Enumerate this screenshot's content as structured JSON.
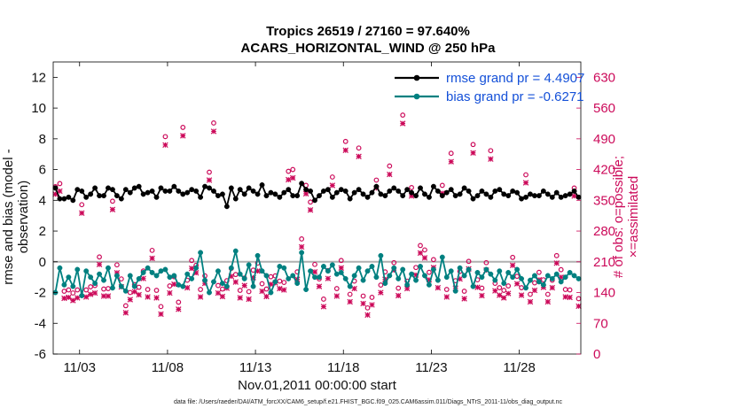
{
  "chart_data": {
    "type": "line",
    "title": "Tropics 26519 / 27160 = 97.640%",
    "subtitle": "ACARS_HORIZONTAL_WIND @ 250 hPa",
    "xlabel": "Nov.01,2011 00:00:00 start",
    "ylabel_left": "rmse and bias (model - observation)",
    "ylabel_right": "# of obs: o=possible; ×=assimilated",
    "footnote": "data file: /Users/raeder/DAI/ATM_forcXX/CAM6_setup/f.e21.FHIST_BGC.f09_025.CAM6assim.011/Diags_NTrS_2011-11/obs_diag_output.nc",
    "xlim": [
      1.5,
      31.5
    ],
    "ylim_left": [
      -6,
      13
    ],
    "ylim_right": [
      0,
      665
    ],
    "x_tick_values": [
      3,
      8,
      13,
      18,
      23,
      28
    ],
    "x_tick_labels": [
      "11/03",
      "11/08",
      "11/13",
      "11/18",
      "11/23",
      "11/28"
    ],
    "y_left_ticks": [
      "-6",
      "-4",
      "-2",
      "0",
      "2",
      "4",
      "6",
      "8",
      "10",
      "12"
    ],
    "y_right_ticks": [
      "0",
      "70",
      "140",
      "210",
      "280",
      "350",
      "420",
      "490",
      "560",
      "630"
    ],
    "legend": [
      {
        "label": "rmse grand pr = 4.4907",
        "color": "#000000"
      },
      {
        "label": "bias grand pr = -0.6271",
        "color": "#008080"
      }
    ],
    "series": [
      {
        "name": "rmse",
        "color": "#000000",
        "values": [
          4.8,
          4.1,
          4.1,
          4.2,
          4.0,
          4.7,
          4.6,
          4.2,
          4.4,
          4.8,
          4.3,
          4.3,
          4.8,
          4.7,
          4.3,
          4.1,
          4.7,
          4.5,
          4.8,
          4.9,
          4.4,
          4.5,
          4.6,
          4.2,
          4.8,
          4.6,
          4.6,
          4.9,
          4.6,
          4.4,
          4.5,
          4.7,
          4.6,
          4.2,
          4.9,
          4.8,
          4.6,
          4.3,
          4.4,
          3.6,
          4.8,
          4.1,
          4.7,
          4.4,
          4.8,
          4.6,
          4.4,
          5.0,
          4.3,
          4.5,
          4.4,
          4.2,
          4.5,
          4.7,
          4.3,
          4.3,
          5.1,
          4.7,
          4.6,
          4.0,
          4.3,
          4.6,
          4.7,
          4.2,
          4.5,
          4.7,
          4.6,
          4.1,
          4.5,
          4.7,
          4.4,
          4.2,
          4.5,
          4.9,
          4.4,
          4.3,
          4.6,
          4.8,
          4.6,
          4.3,
          4.7,
          4.5,
          4.3,
          4.8,
          4.4,
          4.2,
          4.9,
          4.6,
          4.3,
          4.5,
          4.7,
          4.3,
          4.4,
          4.8,
          4.6,
          4.1,
          4.3,
          4.6,
          4.4,
          4.2,
          4.6,
          4.7,
          4.4,
          4.3,
          4.6,
          4.5,
          4.1,
          4.2,
          4.4,
          4.3,
          4.3,
          4.6,
          4.4,
          4.2,
          4.5,
          4.2,
          4.3,
          4.4,
          4.6,
          4.2
        ]
      },
      {
        "name": "bias",
        "color": "#008080",
        "values": [
          -2.0,
          -0.4,
          -1.5,
          -1.0,
          -1.6,
          -0.5,
          -2.2,
          -0.6,
          -1.0,
          -1.4,
          -0.8,
          -1.2,
          -0.4,
          -1.7,
          -0.9,
          -1.6,
          -1.9,
          -0.9,
          -1.6,
          -1.1,
          -0.7,
          -0.4,
          -0.7,
          -0.9,
          -0.6,
          -0.5,
          -1.0,
          -0.9,
          -1.5,
          -1.6,
          -0.8,
          -1.1,
          -0.4,
          0.6,
          -1.2,
          -2.0,
          -1.3,
          -0.6,
          -1.4,
          -1.6,
          -0.4,
          0.7,
          -0.8,
          -1.1,
          -0.2,
          -1.6,
          0.4,
          -0.6,
          -0.9,
          -2.0,
          -1.3,
          -0.3,
          -0.4,
          -1.1,
          -0.9,
          -1.4,
          0.6,
          -1.8,
          -0.6,
          -1.0,
          -1.0,
          -0.3,
          -0.6,
          -0.2,
          -0.8,
          -0.7,
          -1.1,
          -1.6,
          -0.9,
          -0.4,
          -1.2,
          -0.6,
          -0.3,
          -1.0,
          0.4,
          -1.4,
          -0.9,
          -0.4,
          -1.1,
          -0.5,
          -1.5,
          -0.8,
          -1.2,
          -0.3,
          -0.9,
          -1.5,
          -0.5,
          -1.2,
          0.3,
          -1.0,
          -0.6,
          -1.9,
          -0.4,
          -0.9,
          -0.5,
          -1.6,
          -0.7,
          -1.0,
          -0.5,
          -0.8,
          -1.2,
          -0.6,
          -1.4,
          -0.7,
          -1.0,
          -0.5,
          -1.1,
          -1.7,
          -1.2,
          -0.9,
          -1.3,
          -1.5,
          -0.9,
          -1.1,
          -0.8,
          -1.3,
          -1.0,
          -0.7,
          -0.9,
          -1.1
        ]
      },
      {
        "name": "possible",
        "marker": "o",
        "axis": "right",
        "color": "#cc0a5a",
        "values": [
          375,
          382,
          137,
          140,
          133,
          140,
          334,
          140,
          147,
          150,
          215,
          142,
          143,
          342,
          197,
          165,
          104,
          134,
          152,
          146,
          183,
          141,
          230,
          139,
          102,
          489,
          149,
          170,
          112,
          510,
          162,
          207,
          196,
          141,
          172,
          408,
          520,
          150,
          142,
          161,
          189,
          175,
          139,
          167,
          136,
          185,
          201,
          154,
          142,
          170,
          172,
          160,
          157,
          410,
          414,
          181,
          256,
          378,
          340,
          198,
          165,
          119,
          184,
          397,
          143,
          207,
          478,
          130,
          160,
          463,
          126,
          99,
          123,
          390,
          151,
          181,
          422,
          202,
          144,
          538,
          160,
          373,
          191,
          241,
          231,
          180,
          209,
          162,
          378,
          141,
          451,
          161,
          182,
          137,
          205,
          471,
          163,
          144,
          202,
          457,
          155,
          145,
          139,
          149,
          214,
          171,
          145,
          402,
          130,
          156,
          180,
          163,
          130,
          162,
          218,
          186,
          141,
          140,
          372,
          120
        ]
      },
      {
        "name": "assimilated",
        "marker": "x",
        "axis": "right",
        "color": "#cc0a5a",
        "values": [
          370,
          377,
          133,
          135,
          128,
          134,
          327,
          136,
          142,
          145,
          210,
          138,
          138,
          335,
          191,
          159,
          100,
          130,
          148,
          141,
          178,
          136,
          224,
          134,
          97,
          482,
          145,
          165,
          108,
          503,
          157,
          201,
          191,
          136,
          167,
          402,
          513,
          145,
          137,
          156,
          183,
          170,
          134,
          162,
          131,
          180,
          195,
          149,
          137,
          165,
          168,
          155,
          152,
          403,
          407,
          176,
          250,
          371,
          334,
          193,
          160,
          114,
          178,
          390,
          138,
          202,
          470,
          125,
          155,
          456,
          121,
          95,
          118,
          384,
          146,
          176,
          415,
          197,
          139,
          531,
          155,
          366,
          186,
          236,
          225,
          175,
          203,
          157,
          372,
          136,
          444,
          156,
          177,
          132,
          200,
          464,
          158,
          139,
          197,
          450,
          150,
          140,
          134,
          144,
          208,
          166,
          140,
          396,
          125,
          151,
          175,
          158,
          125,
          157,
          213,
          181,
          136,
          135,
          366,
          115
        ]
      }
    ]
  }
}
